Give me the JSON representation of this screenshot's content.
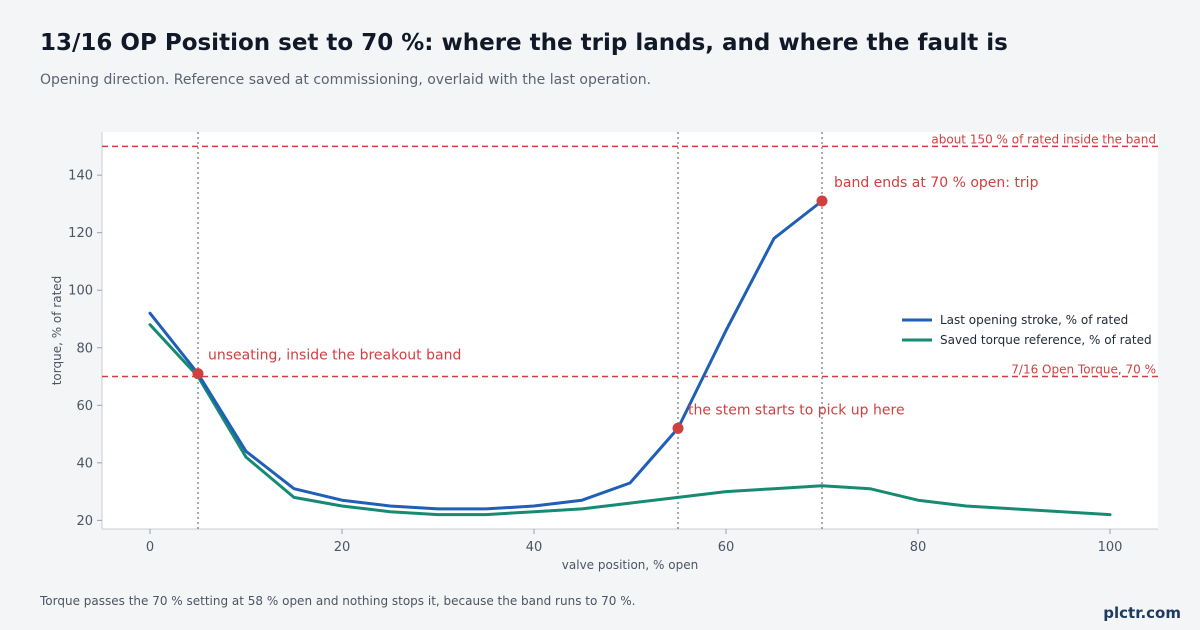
{
  "header": {
    "title": "13/16 OP Position set to 70 %: where the trip lands, and where the fault is",
    "subtitle": "Opening direction. Reference saved at commissioning, overlaid with the last operation."
  },
  "footer": {
    "note": "Torque passes the 70 % setting at 58 % open and nothing stops it, because the band runs to 70 %.",
    "brand": "plctr.com"
  },
  "chart_data": {
    "type": "line",
    "xlabel": "valve position, % open",
    "ylabel": "torque, % of rated",
    "xlim": [
      -5,
      105
    ],
    "ylim": [
      17,
      155
    ],
    "xticks": [
      0,
      20,
      40,
      60,
      80,
      100
    ],
    "yticks": [
      20,
      40,
      60,
      80,
      100,
      120,
      140
    ],
    "grid": false,
    "legend_position": "right",
    "series": [
      {
        "name": "Last opening stroke, % of rated",
        "color": "#1f5fb5",
        "x": [
          0,
          5,
          10,
          15,
          20,
          25,
          30,
          35,
          40,
          45,
          50,
          55,
          60,
          65,
          70
        ],
        "y": [
          92,
          71,
          44,
          31,
          27,
          25,
          24,
          24,
          25,
          27,
          33,
          52,
          86,
          118,
          131
        ]
      },
      {
        "name": "Saved torque reference, % of rated",
        "color": "#168a72",
        "x": [
          0,
          5,
          10,
          15,
          20,
          25,
          30,
          35,
          40,
          45,
          50,
          55,
          60,
          65,
          70,
          75,
          80,
          85,
          90,
          95,
          100
        ],
        "y": [
          88,
          70,
          42,
          28,
          25,
          23,
          22,
          22,
          23,
          24,
          26,
          28,
          30,
          31,
          32,
          31,
          27,
          25,
          24,
          23,
          22
        ]
      }
    ],
    "hlines": [
      {
        "y": 150,
        "label": "about 150 % of rated inside the band",
        "color": "#d04040"
      },
      {
        "y": 70,
        "label": "7/16 Open Torque, 70 %",
        "color": "#d04040"
      }
    ],
    "vlines": [
      5,
      55,
      70
    ],
    "markers": [
      {
        "x": 5,
        "y": 71,
        "label": "unseating, inside the breakout band"
      },
      {
        "x": 55,
        "y": 52,
        "label": "the stem starts to pick up here"
      },
      {
        "x": 70,
        "y": 131,
        "label": "band ends at 70 % open: trip"
      }
    ],
    "marker_color": "#d04040"
  }
}
